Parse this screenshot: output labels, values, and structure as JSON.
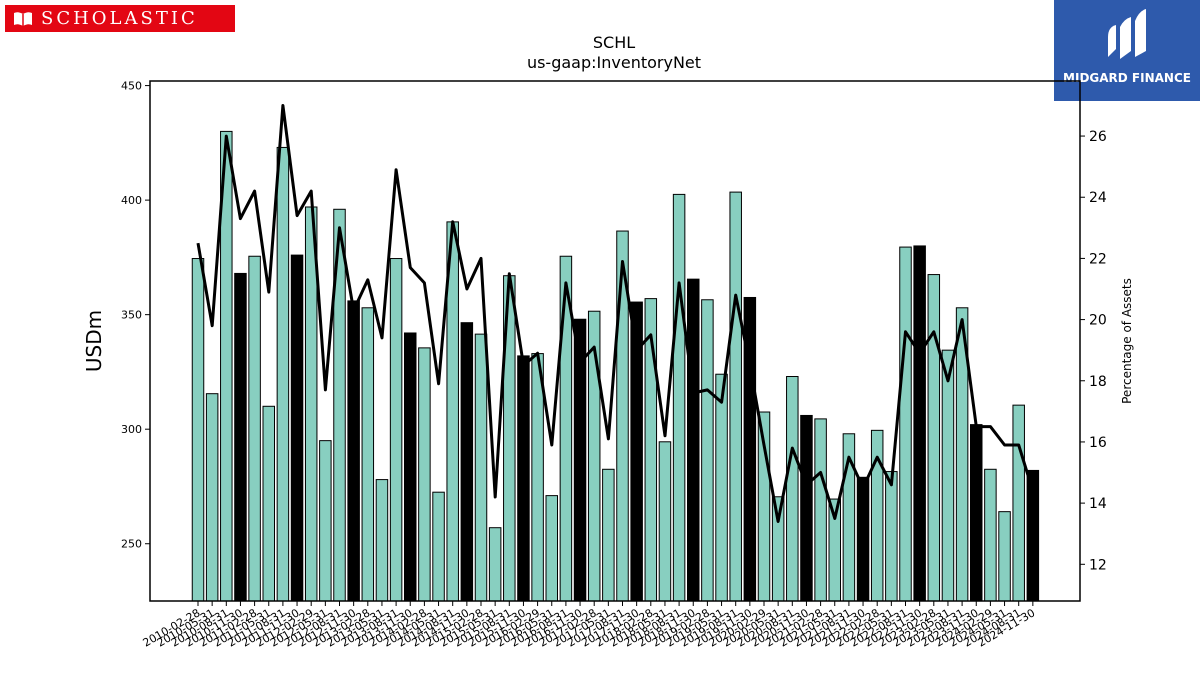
{
  "brand_left": "SCHOLASTIC",
  "brand_right": "MIDGARD FINANCE",
  "colors": {
    "bar_default": "#88cfc0",
    "bar_highlight": "#000000",
    "line": "#000000",
    "brand_red": "#e30613",
    "brand_blue": "#2e5aac"
  },
  "chart_data": {
    "type": "bar",
    "title": "SCHL",
    "subtitle": "us-gaap:InventoryNet",
    "ylabel": "USDm",
    "y2label": "Percentage of Assets",
    "ylim": [
      225,
      452
    ],
    "y2lim": [
      10.8,
      27.8
    ],
    "yticks": [
      250,
      300,
      350,
      400,
      450
    ],
    "y2ticks": [
      12,
      14,
      16,
      18,
      20,
      22,
      24,
      26
    ],
    "x_tick_labels": [
      "2010-02-28",
      "2010-05-31",
      "2010-08-31",
      "2010-11-30",
      "2011-02-28",
      "2011-05-31",
      "2011-08-31",
      "2011-11-30",
      "2012-02-29",
      "2012-05-31",
      "2012-08-31",
      "2012-11-30",
      "2013-02-28",
      "2013-05-31",
      "2013-08-31",
      "2013-11-30",
      "2014-02-28",
      "2014-05-31",
      "2014-08-31",
      "2014-11-30",
      "2015-02-28",
      "2015-05-31",
      "2015-08-31",
      "2015-11-30",
      "2016-02-29",
      "2016-05-31",
      "2016-08-31",
      "2016-11-30",
      "2017-02-28",
      "2017-05-31",
      "2017-08-31",
      "2017-11-30",
      "2018-02-28",
      "2018-05-31",
      "2018-08-31",
      "2018-11-30",
      "2019-02-28",
      "2019-05-31",
      "2019-08-31",
      "2019-11-30",
      "2020-02-29",
      "2020-05-31",
      "2020-08-31",
      "2020-11-30",
      "2021-02-28",
      "2021-05-31",
      "2021-08-31",
      "2021-11-30",
      "2022-02-28",
      "2022-05-31",
      "2022-08-31",
      "2022-11-30",
      "2023-02-28",
      "2023-05-31",
      "2023-08-31",
      "2023-11-30",
      "2024-02-29",
      "2024-05-31",
      "2024-08-31",
      "2024-11-30"
    ],
    "bar_values": [
      374.5,
      315.5,
      430,
      368,
      375.5,
      310,
      423,
      376,
      397,
      295,
      396,
      356,
      353,
      278,
      374.5,
      342,
      335.5,
      272.5,
      390.5,
      346.5,
      341.5,
      257,
      367,
      332,
      333,
      271,
      375.5,
      348,
      351.5,
      282.5,
      386.5,
      355.5,
      357,
      294.5,
      402.5,
      365.5,
      356.5,
      324,
      403.5,
      357.5,
      307.5,
      270.5,
      323,
      306,
      304.5,
      269.5,
      298,
      279,
      299.5,
      281.5,
      379.5,
      380,
      367.5,
      334.5,
      353,
      302,
      282.5,
      264,
      310.5,
      282
    ],
    "highlighted": [
      3,
      7,
      11,
      15,
      19,
      23,
      27,
      31,
      35,
      39,
      43,
      47,
      51,
      55,
      59
    ],
    "pct_values": [
      22.5,
      19.8,
      26,
      23.3,
      24.2,
      20.9,
      27,
      23.4,
      24.2,
      17.7,
      23,
      20.3,
      21.3,
      19.4,
      24.9,
      21.7,
      21.2,
      17.9,
      23.2,
      21,
      22,
      14.2,
      21.5,
      18.5,
      18.9,
      15.9,
      21.2,
      18.6,
      19.1,
      16.1,
      21.9,
      19,
      19.5,
      16.2,
      21.2,
      17.6,
      17.7,
      17.3,
      20.8,
      18.5,
      15.9,
      13.4,
      15.8,
      14.6,
      15,
      13.5,
      15.5,
      14.5,
      15.5,
      14.6,
      19.6,
      18.9,
      19.6,
      18,
      20,
      16.5,
      16.5,
      15.9,
      15.9,
      14.4
    ]
  }
}
